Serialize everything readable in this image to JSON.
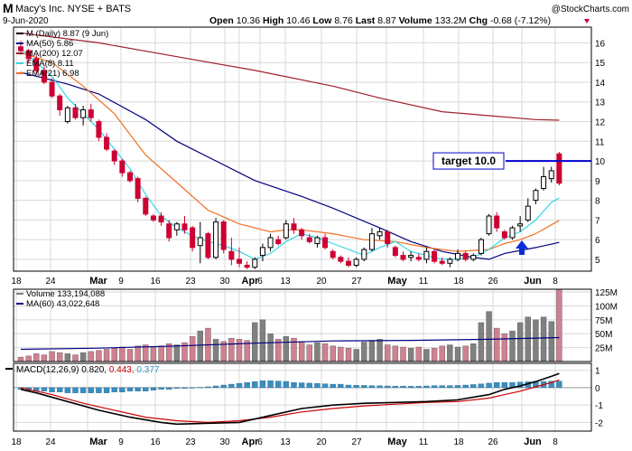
{
  "header": {
    "symbol": "M",
    "name": "Macy's Inc.  NYSE + BATS",
    "date": "9-Jun-2020",
    "source": "@StockCharts.com",
    "quote_open_label": "Open",
    "quote_open": "10.36",
    "quote_high_label": "High",
    "quote_high": "10.46",
    "quote_low_label": "Low",
    "quote_low": "8.76",
    "quote_last_label": "Last",
    "quote_last": "8.87",
    "quote_volume_label": "Volume",
    "quote_volume": "133.2M",
    "quote_chg_label": "Chg",
    "quote_chg": "-0.68 (-7.12%)"
  },
  "colors": {
    "up": "#000000",
    "down": "#cc0033",
    "ma50": "#000080",
    "ma200": "#a0202a",
    "ema8": "#30d8e8",
    "ema21": "#f07020",
    "target": "#0000cc",
    "arrow": "#0b2bd6",
    "vol_up": "#808080",
    "vol_down": "#d08090",
    "macd": "#000000",
    "signal": "#cc0000",
    "hist": "#3a8fc0",
    "grid": "#d8d8d8"
  },
  "chart_data": [
    {
      "type": "candlestick",
      "panel": "price",
      "ylim": [
        4.4,
        16.8
      ],
      "yticks": [
        5,
        6,
        7,
        8,
        9,
        10,
        11,
        12,
        13,
        14,
        15,
        16
      ],
      "x_tick_labels": [
        "18",
        "24",
        "Mar",
        "9",
        "16",
        "23",
        "30",
        "Apr",
        "6",
        "13",
        "20",
        "27",
        "May",
        "11",
        "18",
        "26",
        "Jun",
        "8"
      ],
      "legend": [
        {
          "label": "M (Daily) 8.87 (9 Jun)",
          "color": "#000000"
        },
        {
          "label": "MA(50) 5.86",
          "color": "#000080"
        },
        {
          "label": "MA(200) 12.07",
          "color": "#a0202a"
        },
        {
          "label": "EMA(8) 8.11",
          "color": "#30d8e8"
        },
        {
          "label": "EMA(21) 6.98",
          "color": "#f07020"
        }
      ],
      "annotation": {
        "text": "target 10.0",
        "value": 10.0
      },
      "candles": [
        [
          15.8,
          16.1,
          15.4,
          15.6
        ],
        [
          15.6,
          15.7,
          15.0,
          15.2
        ],
        [
          15.2,
          15.4,
          14.4,
          14.6
        ],
        [
          14.6,
          14.8,
          13.9,
          14.0
        ],
        [
          14.0,
          14.2,
          13.2,
          13.3
        ],
        [
          13.3,
          13.4,
          12.3,
          12.6
        ],
        [
          12.0,
          12.8,
          11.9,
          12.7
        ],
        [
          12.7,
          12.9,
          12.1,
          12.2
        ],
        [
          12.2,
          12.8,
          11.8,
          12.6
        ],
        [
          12.6,
          12.9,
          12.0,
          12.2
        ],
        [
          12.0,
          12.1,
          11.0,
          11.2
        ],
        [
          11.2,
          11.4,
          10.5,
          10.6
        ],
        [
          10.5,
          10.6,
          9.8,
          10.0
        ],
        [
          10.0,
          10.1,
          9.2,
          9.4
        ],
        [
          9.4,
          9.5,
          8.9,
          9.0
        ],
        [
          9.1,
          9.2,
          7.9,
          8.1
        ],
        [
          8.1,
          8.2,
          7.2,
          7.3
        ],
        [
          7.2,
          7.3,
          6.9,
          7.0
        ],
        [
          7.2,
          7.4,
          6.7,
          6.9
        ],
        [
          6.8,
          7.0,
          5.9,
          6.1
        ],
        [
          6.5,
          6.9,
          6.2,
          6.8
        ],
        [
          6.8,
          7.2,
          6.3,
          6.5
        ],
        [
          6.6,
          6.7,
          5.4,
          5.6
        ],
        [
          5.7,
          6.9,
          4.8,
          6.1
        ],
        [
          6.3,
          6.4,
          5.0,
          5.1
        ],
        [
          5.1,
          7.1,
          5.0,
          6.9
        ],
        [
          6.9,
          7.0,
          5.3,
          5.5
        ],
        [
          5.4,
          6.1,
          4.7,
          5.0
        ],
        [
          5.0,
          5.6,
          4.6,
          4.8
        ],
        [
          4.7,
          4.9,
          4.5,
          4.6
        ],
        [
          4.6,
          5.1,
          4.5,
          5.0
        ],
        [
          5.2,
          5.8,
          4.9,
          5.6
        ],
        [
          5.6,
          6.3,
          5.4,
          6.1
        ],
        [
          6.0,
          6.2,
          5.7,
          5.8
        ],
        [
          6.1,
          7.0,
          6.0,
          6.8
        ],
        [
          6.8,
          7.1,
          6.3,
          6.5
        ],
        [
          6.5,
          6.6,
          6.0,
          6.2
        ],
        [
          6.1,
          6.3,
          5.8,
          5.9
        ],
        [
          5.8,
          6.2,
          5.6,
          6.1
        ],
        [
          6.1,
          6.3,
          5.5,
          5.6
        ],
        [
          5.4,
          5.5,
          5.0,
          5.1
        ],
        [
          5.1,
          5.2,
          4.8,
          4.9
        ],
        [
          4.9,
          5.1,
          4.6,
          4.7
        ],
        [
          4.7,
          5.1,
          4.6,
          5.0
        ],
        [
          5.0,
          5.6,
          4.9,
          5.5
        ],
        [
          5.5,
          6.6,
          5.4,
          6.3
        ],
        [
          6.2,
          6.6,
          6.0,
          6.4
        ],
        [
          6.4,
          6.5,
          5.6,
          5.8
        ],
        [
          5.6,
          5.7,
          5.1,
          5.2
        ],
        [
          5.2,
          5.4,
          4.9,
          5.0
        ],
        [
          5.1,
          5.4,
          4.9,
          5.2
        ],
        [
          5.1,
          5.3,
          4.9,
          5.0
        ],
        [
          5.0,
          5.6,
          4.8,
          5.4
        ],
        [
          5.4,
          5.5,
          4.8,
          4.9
        ],
        [
          4.9,
          5.1,
          4.7,
          4.8
        ],
        [
          4.8,
          5.1,
          4.6,
          5.0
        ],
        [
          5.0,
          5.5,
          4.9,
          5.3
        ],
        [
          5.3,
          5.4,
          4.9,
          5.0
        ],
        [
          5.0,
          5.3,
          4.9,
          5.2
        ],
        [
          5.3,
          6.1,
          5.2,
          6.0
        ],
        [
          6.3,
          7.3,
          6.2,
          7.2
        ],
        [
          7.2,
          7.4,
          6.4,
          6.6
        ],
        [
          6.4,
          6.5,
          6.0,
          6.1
        ],
        [
          6.1,
          6.7,
          6.0,
          6.6
        ],
        [
          6.7,
          7.2,
          6.4,
          6.8
        ],
        [
          7.0,
          8.1,
          6.9,
          7.7
        ],
        [
          8.0,
          8.6,
          7.8,
          8.5
        ],
        [
          8.6,
          9.7,
          8.5,
          9.2
        ],
        [
          9.1,
          9.7,
          8.9,
          9.5
        ],
        [
          10.36,
          10.46,
          8.76,
          8.87
        ]
      ],
      "ma50": [
        [
          0,
          14.5
        ],
        [
          6,
          13.9
        ],
        [
          10,
          13.4
        ],
        [
          16,
          12.1
        ],
        [
          20,
          11.0
        ],
        [
          26,
          9.8
        ],
        [
          30,
          9.0
        ],
        [
          36,
          8.2
        ],
        [
          40,
          7.6
        ],
        [
          46,
          6.6
        ],
        [
          50,
          5.9
        ],
        [
          54,
          5.4
        ],
        [
          58,
          5.1
        ],
        [
          60,
          5.0
        ],
        [
          62,
          5.3
        ],
        [
          66,
          5.6
        ],
        [
          69,
          5.86
        ]
      ],
      "ma200": [
        [
          0,
          16.5
        ],
        [
          10,
          16.0
        ],
        [
          20,
          15.3
        ],
        [
          30,
          14.6
        ],
        [
          40,
          13.8
        ],
        [
          46,
          13.2
        ],
        [
          54,
          12.5
        ],
        [
          60,
          12.3
        ],
        [
          66,
          12.1
        ],
        [
          69,
          12.07
        ]
      ],
      "ema8": [
        [
          0,
          15.7
        ],
        [
          4,
          14.3
        ],
        [
          6,
          13.2
        ],
        [
          10,
          11.6
        ],
        [
          14,
          9.6
        ],
        [
          16,
          8.3
        ],
        [
          18,
          7.2
        ],
        [
          20,
          6.6
        ],
        [
          22,
          6.2
        ],
        [
          24,
          5.9
        ],
        [
          26,
          5.7
        ],
        [
          28,
          5.4
        ],
        [
          30,
          5.0
        ],
        [
          32,
          5.3
        ],
        [
          34,
          5.9
        ],
        [
          36,
          6.3
        ],
        [
          38,
          6.1
        ],
        [
          40,
          5.8
        ],
        [
          44,
          5.2
        ],
        [
          46,
          5.6
        ],
        [
          48,
          5.9
        ],
        [
          50,
          5.4
        ],
        [
          54,
          5.0
        ],
        [
          56,
          5.0
        ],
        [
          58,
          5.1
        ],
        [
          60,
          5.5
        ],
        [
          62,
          6.1
        ],
        [
          64,
          6.4
        ],
        [
          66,
          7.0
        ],
        [
          68,
          7.9
        ],
        [
          69,
          8.11
        ]
      ],
      "ema21": [
        [
          0,
          15.5
        ],
        [
          4,
          15.0
        ],
        [
          8,
          13.8
        ],
        [
          12,
          12.4
        ],
        [
          16,
          10.3
        ],
        [
          20,
          8.9
        ],
        [
          24,
          7.5
        ],
        [
          28,
          6.8
        ],
        [
          32,
          6.4
        ],
        [
          34,
          6.5
        ],
        [
          36,
          6.5
        ],
        [
          40,
          6.3
        ],
        [
          44,
          6.0
        ],
        [
          48,
          5.9
        ],
        [
          52,
          5.6
        ],
        [
          56,
          5.4
        ],
        [
          60,
          5.5
        ],
        [
          62,
          5.8
        ],
        [
          64,
          6.0
        ],
        [
          66,
          6.3
        ],
        [
          69,
          6.98
        ]
      ]
    },
    {
      "type": "bar",
      "panel": "volume",
      "legend": [
        {
          "label": "Volume 133,194,088",
          "color": "#808080"
        },
        {
          "label": "MA(60) 43,022,648",
          "color": "#000080"
        }
      ],
      "ylim": [
        0,
        130
      ],
      "yticks": [
        25,
        50,
        75,
        100,
        125
      ],
      "ytick_labels": [
        "25M",
        "50M",
        "75M",
        "100M",
        "125M"
      ],
      "values": [
        8,
        10,
        14,
        12,
        18,
        16,
        14,
        12,
        16,
        18,
        20,
        22,
        24,
        26,
        22,
        28,
        30,
        26,
        28,
        32,
        30,
        34,
        45,
        55,
        60,
        40,
        36,
        42,
        40,
        38,
        70,
        75,
        50,
        40,
        45,
        42,
        36,
        30,
        34,
        32,
        28,
        26,
        24,
        22,
        35,
        38,
        40,
        30,
        28,
        26,
        24,
        26,
        22,
        24,
        28,
        30,
        26,
        28,
        32,
        70,
        90,
        60,
        50,
        55,
        70,
        80,
        75,
        80,
        72,
        133
      ],
      "ma60": [
        [
          0,
          22
        ],
        [
          10,
          24
        ],
        [
          20,
          28
        ],
        [
          30,
          33
        ],
        [
          40,
          37
        ],
        [
          50,
          38
        ],
        [
          60,
          40
        ],
        [
          69,
          43
        ]
      ]
    },
    {
      "type": "line",
      "panel": "macd",
      "legend": [
        {
          "label": "MACD(12,26,9)",
          "color": "#000000"
        },
        {
          "label": "0.820",
          "color": "#000000"
        },
        {
          "label": "0.443",
          "color": "#cc0000"
        },
        {
          "label": "0.377",
          "color": "#3a8fc0"
        }
      ],
      "ylim": [
        -2.5,
        1.4
      ],
      "yticks": [
        -2,
        -1,
        0,
        1
      ],
      "macd": [
        [
          0,
          -0.1
        ],
        [
          2,
          -0.3
        ],
        [
          6,
          -0.8
        ],
        [
          10,
          -1.3
        ],
        [
          14,
          -1.7
        ],
        [
          18,
          -2.0
        ],
        [
          20,
          -2.1
        ],
        [
          24,
          -2.05
        ],
        [
          28,
          -2.0
        ],
        [
          32,
          -1.6
        ],
        [
          36,
          -1.2
        ],
        [
          40,
          -1.0
        ],
        [
          44,
          -0.9
        ],
        [
          48,
          -0.85
        ],
        [
          52,
          -0.8
        ],
        [
          56,
          -0.7
        ],
        [
          60,
          -0.4
        ],
        [
          62,
          -0.1
        ],
        [
          64,
          0.1
        ],
        [
          66,
          0.35
        ],
        [
          68,
          0.65
        ],
        [
          69,
          0.82
        ]
      ],
      "signal": [
        [
          0,
          0.0
        ],
        [
          4,
          -0.4
        ],
        [
          8,
          -0.9
        ],
        [
          12,
          -1.3
        ],
        [
          16,
          -1.7
        ],
        [
          20,
          -1.9
        ],
        [
          24,
          -2.0
        ],
        [
          28,
          -1.9
        ],
        [
          32,
          -1.7
        ],
        [
          36,
          -1.4
        ],
        [
          40,
          -1.2
        ],
        [
          44,
          -1.05
        ],
        [
          48,
          -0.95
        ],
        [
          52,
          -0.85
        ],
        [
          56,
          -0.8
        ],
        [
          60,
          -0.6
        ],
        [
          62,
          -0.4
        ],
        [
          64,
          -0.2
        ],
        [
          66,
          0.05
        ],
        [
          68,
          0.3
        ],
        [
          69,
          0.443
        ]
      ],
      "hist": [
        -0.1,
        -0.15,
        -0.2,
        -0.2,
        -0.25,
        -0.25,
        -0.3,
        -0.3,
        -0.3,
        -0.3,
        -0.3,
        -0.3,
        -0.25,
        -0.25,
        -0.2,
        -0.2,
        -0.2,
        -0.15,
        -0.1,
        -0.1,
        -0.05,
        -0.05,
        0.0,
        0.02,
        0.05,
        0.1,
        0.15,
        0.2,
        0.25,
        0.3,
        0.35,
        0.4,
        0.4,
        0.38,
        0.36,
        0.3,
        0.28,
        0.26,
        0.24,
        0.22,
        0.2,
        0.2,
        0.15,
        0.14,
        0.13,
        0.12,
        0.11,
        0.1,
        0.09,
        0.09,
        0.08,
        0.08,
        0.1,
        0.12,
        0.12,
        0.12,
        0.13,
        0.15,
        0.18,
        0.22,
        0.26,
        0.3,
        0.3,
        0.3,
        0.32,
        0.34,
        0.36,
        0.36,
        0.37,
        0.377
      ]
    }
  ]
}
